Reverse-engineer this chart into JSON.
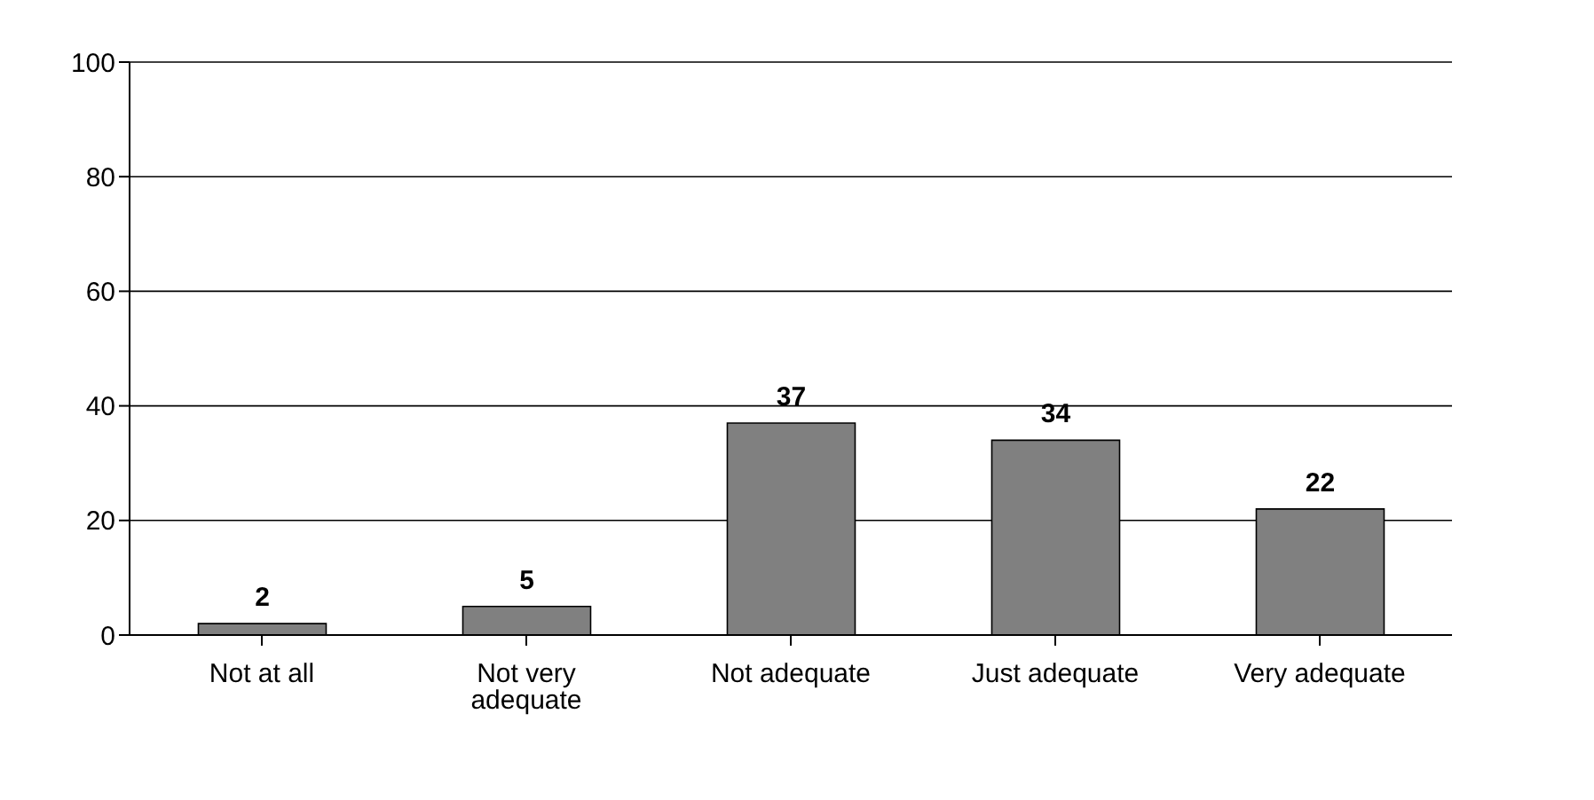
{
  "chart_data": {
    "type": "bar",
    "categories": [
      "Not at all",
      "Not very adequate",
      "Not adequate",
      "Just adequate",
      "Very adequate"
    ],
    "values": [
      2,
      5,
      37,
      34,
      22
    ],
    "color": "#808080",
    "ylim": [
      0,
      100
    ],
    "yticks": [
      0,
      20,
      40,
      60,
      80,
      100
    ],
    "grid": "y",
    "data_labels": true
  }
}
